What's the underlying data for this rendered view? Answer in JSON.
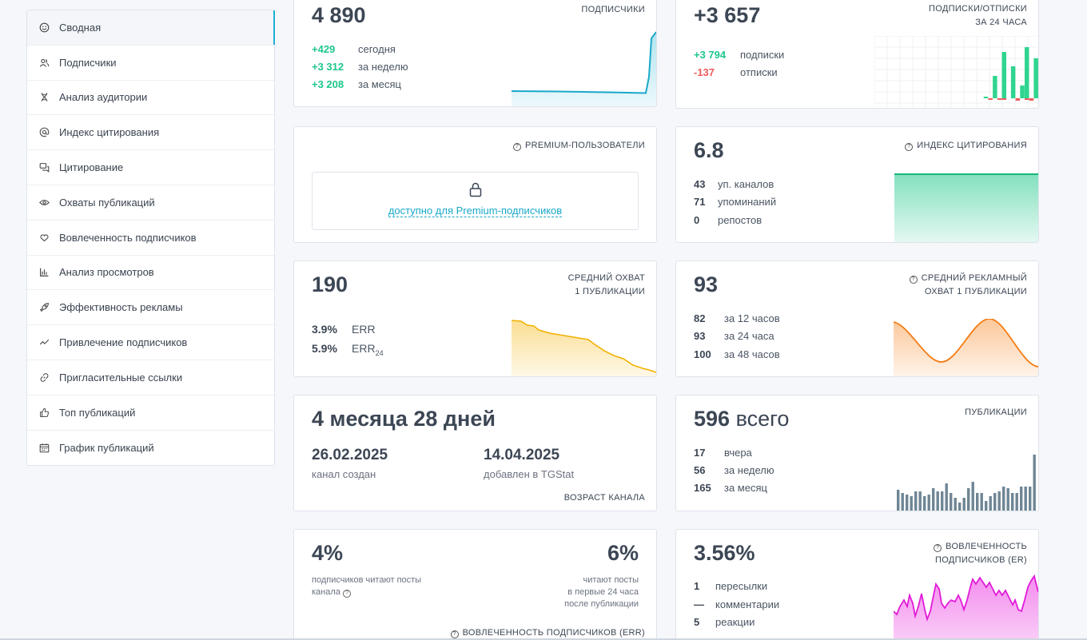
{
  "sidebar": {
    "items": [
      {
        "label": "Сводная",
        "icon": "smile-icon"
      },
      {
        "label": "Подписчики",
        "icon": "users-icon"
      },
      {
        "label": "Анализ аудитории",
        "icon": "dna-icon"
      },
      {
        "label": "Индекс цитирования",
        "icon": "at-icon"
      },
      {
        "label": "Цитирование",
        "icon": "quote-icon"
      },
      {
        "label": "Охваты публикаций",
        "icon": "eye-icon"
      },
      {
        "label": "Вовлеченность подписчиков",
        "icon": "heart-hand-icon"
      },
      {
        "label": "Анализ просмотров",
        "icon": "bar-chart-icon"
      },
      {
        "label": "Эффективность рекламы",
        "icon": "rocket-icon"
      },
      {
        "label": "Привлечение подписчиков",
        "icon": "trend-icon"
      },
      {
        "label": "Пригласительные ссылки",
        "icon": "link-icon"
      },
      {
        "label": "Топ публикаций",
        "icon": "thumbs-up-icon"
      },
      {
        "label": "График публикаций",
        "icon": "calendar-icon"
      }
    ]
  },
  "subscribers": {
    "value": "4 890",
    "caption": "ПОДПИСЧИКИ",
    "rows": [
      {
        "v": "+429",
        "l": "сегодня"
      },
      {
        "v": "+3 312",
        "l": "за неделю"
      },
      {
        "v": "+3 208",
        "l": "за месяц"
      }
    ]
  },
  "subs_unsubs": {
    "value": "+3 657",
    "caption1": "ПОДПИСКИ/ОТПИСКИ",
    "caption2": "ЗА 24 ЧАСА",
    "rows": [
      {
        "v": "+3 794",
        "l": "подписки"
      },
      {
        "v": "-137",
        "l": "отписки"
      }
    ]
  },
  "premium": {
    "caption": "PREMIUM-ПОЛЬЗОВАТЕЛИ",
    "link": "доступно для Premium-подписчиков"
  },
  "citation": {
    "value": "6.8",
    "caption": "ИНДЕКС ЦИТИРОВАНИЯ",
    "rows": [
      {
        "v": "43",
        "l": "уп. каналов"
      },
      {
        "v": "71",
        "l": "упоминаний"
      },
      {
        "v": "0",
        "l": "репостов"
      }
    ]
  },
  "reach": {
    "value": "190",
    "caption1": "СРЕДНИЙ ОХВАТ",
    "caption2": "1 ПУБЛИКАЦИИ",
    "err": {
      "v": "3.9%",
      "l": "ERR"
    },
    "err24": {
      "v": "5.9%",
      "l": "ERR",
      "sub": "24"
    }
  },
  "ad_reach": {
    "value": "93",
    "caption1": "СРЕДНИЙ РЕКЛАМНЫЙ",
    "caption2": "ОХВАТ 1 ПУБЛИКАЦИИ",
    "rows": [
      {
        "v": "82",
        "l": "за 12 часов"
      },
      {
        "v": "93",
        "l": "за 24 часа"
      },
      {
        "v": "100",
        "l": "за 48 часов"
      }
    ]
  },
  "age": {
    "value": "4 месяца 28 дней",
    "created_date": "26.02.2025",
    "created_label": "канал создан",
    "added_date": "14.04.2025",
    "added_label": "добавлен в TGStat",
    "caption": "ВОЗРАСТ КАНАЛА"
  },
  "posts": {
    "value": "596",
    "value_suffix": "всего",
    "caption": "ПУБЛИКАЦИИ",
    "rows": [
      {
        "v": "17",
        "l": "вчера"
      },
      {
        "v": "56",
        "l": "за неделю"
      },
      {
        "v": "165",
        "l": "за месяц"
      }
    ]
  },
  "err_card": {
    "left_value": "4%",
    "left_text1": "подписчиков читают посты",
    "left_text2": "канала",
    "right_value": "6%",
    "right_text1": "читают посты",
    "right_text2": "в первые 24 часа",
    "right_text3": "после публикации",
    "caption": "ВОВЛЕЧЕННОСТЬ ПОДПИСЧИКОВ (ERR)"
  },
  "er_card": {
    "value": "3.56%",
    "caption1": "ВОВЛЕЧЕННОСТЬ",
    "caption2": "ПОДПИСЧИКОВ (ER)",
    "rows": [
      {
        "v": "1",
        "l": "пересылки"
      },
      {
        "v": "—",
        "l": "комментарии"
      },
      {
        "v": "5",
        "l": "реакции"
      }
    ]
  },
  "colors": {
    "accent": "#1fb1d3",
    "green": "#1ec78b",
    "red": "#f0595b",
    "orange": "#f5a623",
    "magenta": "#e62ad6"
  }
}
